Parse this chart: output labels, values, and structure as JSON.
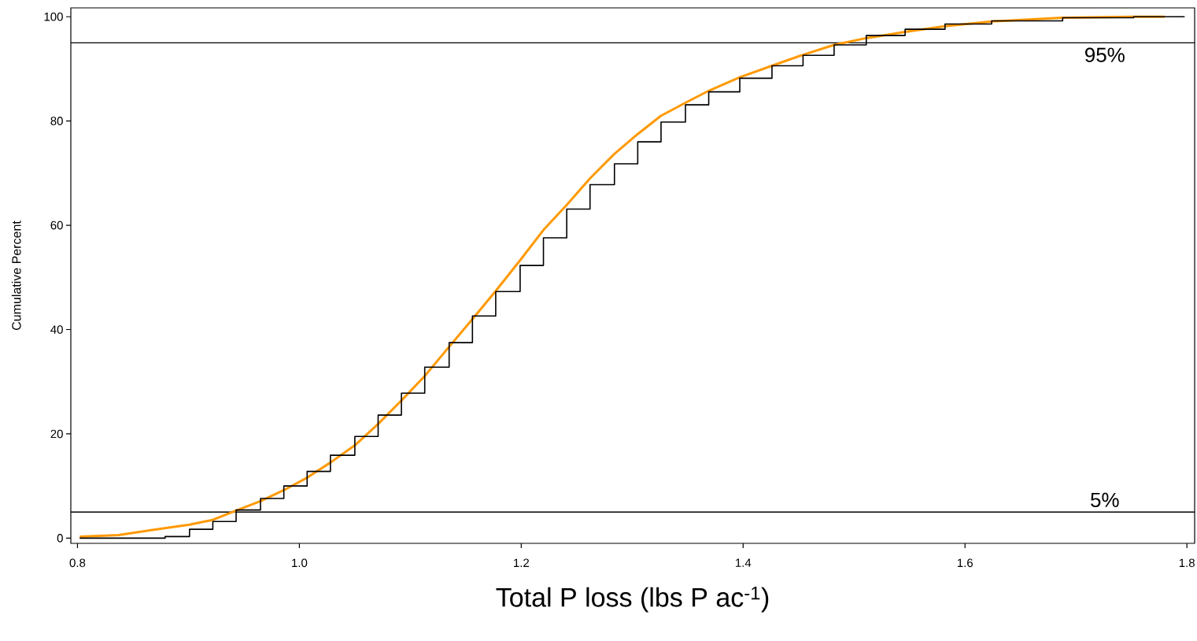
{
  "chart_data": {
    "type": "line",
    "xlabel": "Total P loss (lbs P ac$^{-1}$)",
    "ylabel": "Cumulative Percent",
    "xlim": [
      0.794,
      1.807
    ],
    "ylim": [
      -1,
      101.7
    ],
    "xticks": [
      0.8,
      {
        "value": 1,
        "label": "1.0"
      },
      1.2,
      1.4,
      1.6,
      1.8
    ],
    "yticks": [
      0,
      20,
      40,
      60,
      80,
      100
    ],
    "ref_lines": [
      {
        "axis": "y",
        "value": 95,
        "label": "95%",
        "color": "#000000"
      },
      {
        "axis": "y",
        "value": 5,
        "label": "5%",
        "color": "#000000"
      }
    ],
    "series": [
      {
        "color": "#ff9900",
        "x": [
          0.802,
          0.837,
          0.865,
          0.901,
          0.922,
          0.943,
          0.965,
          0.986,
          1.007,
          1.028,
          1.05,
          1.071,
          1.092,
          1.113,
          1.135,
          1.156,
          1.177,
          1.199,
          1.22,
          1.241,
          1.262,
          1.284,
          1.305,
          1.326,
          1.348,
          1.369,
          1.397,
          1.426,
          1.454,
          1.482,
          1.511,
          1.546,
          1.582,
          1.624,
          1.688,
          1.752,
          1.78
        ],
        "values": [
          0.3,
          0.6,
          1.5,
          2.6,
          3.5,
          5.3,
          7.1,
          9.2,
          11.6,
          14.5,
          17.8,
          21.9,
          26.4,
          31.1,
          36.7,
          42.0,
          47.4,
          53.3,
          59.1,
          63.9,
          69.0,
          73.7,
          77.5,
          81.0,
          83.5,
          85.8,
          88.4,
          90.6,
          92.7,
          94.6,
          95.9,
          97.1,
          98.2,
          99.1,
          99.8,
          100,
          100
        ]
      },
      {
        "type": "step",
        "color": "#000000",
        "x": [
          0.802,
          0.865,
          0.879,
          0.901,
          0.922,
          0.943,
          0.965,
          0.986,
          1.007,
          1.028,
          1.05,
          1.071,
          1.092,
          1.113,
          1.135,
          1.156,
          1.177,
          1.199,
          1.22,
          1.241,
          1.262,
          1.284,
          1.305,
          1.326,
          1.348,
          1.369,
          1.397,
          1.426,
          1.454,
          1.482,
          1.511,
          1.546,
          1.582,
          1.624,
          1.688,
          1.752,
          1.798
        ],
        "values": [
          0,
          0,
          0.3,
          1.7,
          3.2,
          5.4,
          7.6,
          10.0,
          12.8,
          15.9,
          19.5,
          23.6,
          27.8,
          32.8,
          37.5,
          42.6,
          47.3,
          52.3,
          57.6,
          63.1,
          67.8,
          71.8,
          76.0,
          79.8,
          83.1,
          85.6,
          88.2,
          90.6,
          92.6,
          94.6,
          96.4,
          97.6,
          98.6,
          99.2,
          99.8,
          100,
          100
        ]
      }
    ]
  }
}
